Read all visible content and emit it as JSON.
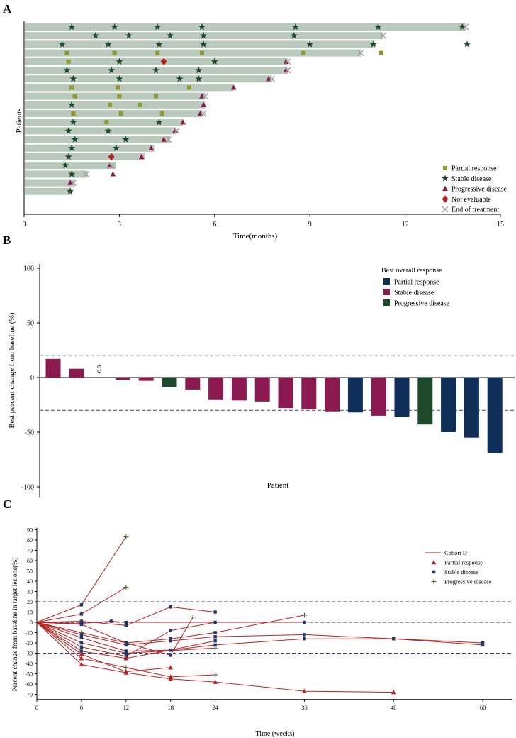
{
  "colors": {
    "swimmer_bar": "#b9c9bb",
    "partial_a": "#8c9a2c",
    "stable_a": "#1e4a2c",
    "progressive_a": "#8a1c4c",
    "not_evaluable_a": "#b32020",
    "end_a": "#9a9a9a",
    "partial_b": "#0f2e5a",
    "stable_b": "#8a1a50",
    "progressive_b": "#1e4a2c",
    "dashed_ref": "#2b4a78",
    "cohort_line": "#b32424",
    "partial_c": "#b32424",
    "stable_c": "#1f3a6a",
    "progressive_c": "#4a5a2a"
  },
  "chart_data": [
    {
      "panel": "A",
      "type": "swimmer",
      "xlabel": "Time(months)",
      "ylabel": "Patients",
      "xlim": [
        0,
        15
      ],
      "xticks": [
        "0",
        "3",
        "6",
        "9",
        "12",
        "15"
      ],
      "legend_position": "bottom-right",
      "legend": [
        "Partial response",
        "Stable disease",
        "Progressive disease",
        "Not evaluable",
        "End of treatment"
      ],
      "patients": [
        {
          "duration": 13.9,
          "partial": [],
          "stable": [
            1.5,
            2.85,
            4.2,
            5.6,
            8.55,
            11.15,
            13.8
          ],
          "progressive": [],
          "not_evaluable": [],
          "end": 13.9
        },
        {
          "duration": 11.3,
          "partial": [],
          "stable": [
            2.25,
            3.3,
            4.6,
            5.65,
            8.5
          ],
          "progressive": [],
          "not_evaluable": [],
          "end": 11.3
        },
        {
          "duration": 11.0,
          "partial": [],
          "stable": [
            1.2,
            2.65,
            4.25,
            5.65,
            9.0,
            11.0,
            13.95
          ],
          "progressive": [],
          "not_evaluable": [],
          "end": null
        },
        {
          "duration": 10.6,
          "partial": [
            1.35,
            2.85,
            4.2,
            5.6,
            8.8,
            11.25
          ],
          "stable": [],
          "progressive": [],
          "not_evaluable": [],
          "end": 10.6
        },
        {
          "duration": 8.3,
          "partial": [
            1.4
          ],
          "stable": [
            3.0,
            6.0
          ],
          "progressive": [
            8.25
          ],
          "not_evaluable": [
            4.4
          ],
          "end": 8.3
        },
        {
          "duration": 8.3,
          "partial": [],
          "stable": [
            1.35,
            2.75,
            4.15,
            5.5
          ],
          "progressive": [
            8.25
          ],
          "not_evaluable": [],
          "end": 8.3
        },
        {
          "duration": 7.8,
          "partial": [],
          "stable": [
            1.55,
            3.0,
            4.9,
            5.5
          ],
          "progressive": [
            7.7
          ],
          "not_evaluable": [],
          "end": 7.8
        },
        {
          "duration": 6.6,
          "partial": [
            1.5,
            2.95,
            5.2
          ],
          "stable": [],
          "progressive": [
            6.6
          ],
          "not_evaluable": [],
          "end": null
        },
        {
          "duration": 5.7,
          "partial": [
            1.6,
            3.0,
            4.15
          ],
          "stable": [],
          "progressive": [
            5.6
          ],
          "not_evaluable": [],
          "end": 5.7
        },
        {
          "duration": 5.7,
          "partial": [
            2.7,
            3.65
          ],
          "stable": [
            1.5
          ],
          "progressive": [
            5.65
          ],
          "not_evaluable": [],
          "end": null
        },
        {
          "duration": 5.6,
          "partial": [
            1.55,
            3.05,
            4.35
          ],
          "stable": [],
          "progressive": [
            5.55
          ],
          "not_evaluable": [],
          "end": 5.65
        },
        {
          "duration": 5.0,
          "partial": [
            2.6
          ],
          "stable": [
            1.55,
            4.25
          ],
          "progressive": [
            5.0
          ],
          "not_evaluable": [],
          "end": null
        },
        {
          "duration": 4.8,
          "partial": [],
          "stable": [
            1.4,
            2.65
          ],
          "progressive": [
            4.75
          ],
          "not_evaluable": [],
          "end": 4.8
        },
        {
          "duration": 4.6,
          "partial": [],
          "stable": [
            1.6,
            3.2
          ],
          "progressive": [
            4.4
          ],
          "not_evaluable": [],
          "end": 4.55
        },
        {
          "duration": 4.1,
          "partial": [],
          "stable": [
            1.5,
            2.9
          ],
          "progressive": [
            4.0
          ],
          "not_evaluable": [],
          "end": null
        },
        {
          "duration": 3.8,
          "partial": [],
          "stable": [
            1.4
          ],
          "progressive": [
            3.7
          ],
          "not_evaluable": [
            2.75
          ],
          "end": null
        },
        {
          "duration": 2.9,
          "partial": [],
          "stable": [
            1.3
          ],
          "progressive": [
            2.7
          ],
          "not_evaluable": [],
          "end": 2.75
        },
        {
          "duration": 2.0,
          "partial": [],
          "stable": [
            1.5
          ],
          "progressive": [
            2.8
          ],
          "not_evaluable": [],
          "end": 1.95
        },
        {
          "duration": 1.6,
          "partial": [],
          "stable": [],
          "progressive": [
            1.45
          ],
          "not_evaluable": [],
          "end": 1.55
        },
        {
          "duration": 1.5,
          "partial": [],
          "stable": [
            1.45
          ],
          "progressive": [],
          "not_evaluable": [],
          "end": null
        }
      ]
    },
    {
      "panel": "B",
      "type": "bar",
      "title": "",
      "xlabel": "Patient",
      "ylabel": "Best percent change from baseline (%)",
      "ylim": [
        -110,
        100
      ],
      "yticks": [
        "100",
        "50",
        "0",
        "-50",
        "-100"
      ],
      "reference_lines": [
        20,
        -30
      ],
      "zero_label": "0.0",
      "legend_title": "Best overall response",
      "legend_position": "top-right",
      "legend": [
        "Partial response",
        "Stable disease",
        "Progressive disease"
      ],
      "values": [
        17,
        8,
        0,
        -2,
        -3,
        -9,
        -11,
        -20,
        -21,
        -22,
        -28,
        -29,
        -31,
        -32,
        -35,
        -36,
        -43,
        -50,
        -55,
        -69
      ],
      "responses": [
        "stable",
        "stable",
        "stable",
        "stable",
        "stable",
        "progressive",
        "stable",
        "stable",
        "stable",
        "stable",
        "stable",
        "stable",
        "stable",
        "partial",
        "stable",
        "partial",
        "progressive",
        "partial",
        "partial",
        "partial"
      ]
    },
    {
      "panel": "C",
      "type": "line",
      "xlabel": "Time (weeks)",
      "ylabel": "Percent change from baseline in target lesions(%)",
      "xlim": [
        0,
        64
      ],
      "ylim": [
        -75,
        92
      ],
      "xticks": [
        "0",
        "6",
        "12",
        "18",
        "24",
        "36",
        "48",
        "60"
      ],
      "yticks": [
        "90",
        "80",
        "70",
        "60",
        "50",
        "40",
        "30",
        "20",
        "10",
        "0",
        "-10",
        "-20",
        "-30",
        "-40",
        "-50",
        "-60",
        "-70"
      ],
      "reference_lines": [
        20,
        0,
        -30
      ],
      "legend_position": "top-right",
      "legend": [
        "Cohort D",
        "Partial response",
        "Stable disease",
        "Progressive disease"
      ],
      "series": [
        {
          "x": [
            0,
            6,
            12
          ],
          "y": [
            0,
            17,
            83
          ],
          "markers": [
            "none",
            "stable",
            "progressive"
          ]
        },
        {
          "x": [
            0,
            6,
            12
          ],
          "y": [
            0,
            8,
            34
          ],
          "markers": [
            "none",
            "stable",
            "progressive"
          ]
        },
        {
          "x": [
            0,
            6,
            12,
            18,
            24
          ],
          "y": [
            0,
            1,
            -3,
            15,
            10
          ],
          "markers": [
            "none",
            "stable",
            "stable",
            "stable",
            "stable"
          ]
        },
        {
          "x": [
            0,
            6,
            10,
            12,
            36
          ],
          "y": [
            0,
            -1,
            1,
            0,
            0
          ],
          "markers": [
            "none",
            "stable",
            "stable",
            "stable",
            "stable"
          ]
        },
        {
          "x": [
            0,
            6,
            12,
            18,
            21
          ],
          "y": [
            0,
            -2,
            -20,
            -32,
            5
          ],
          "markers": [
            "none",
            "stable",
            "stable",
            "stable",
            "progressive"
          ]
        },
        {
          "x": [
            0,
            6,
            12,
            18,
            24,
            36
          ],
          "y": [
            0,
            -10,
            -20,
            -16,
            -10,
            7
          ],
          "markers": [
            "none",
            "progressive",
            "stable",
            "stable",
            "stable",
            "progressive"
          ]
        },
        {
          "x": [
            0,
            6,
            12,
            18,
            24,
            36,
            60
          ],
          "y": [
            0,
            -12,
            -22,
            -18,
            -14,
            -12,
            -20
          ],
          "markers": [
            "none",
            "stable",
            "stable",
            "stable",
            "stable",
            "stable",
            "stable"
          ]
        },
        {
          "x": [
            0,
            6,
            12,
            18,
            24,
            36,
            48,
            60
          ],
          "y": [
            0,
            -15,
            -28,
            -27,
            -22,
            -16,
            -16,
            -22
          ],
          "markers": [
            "none",
            "stable",
            "stable",
            "stable",
            "stable",
            "stable",
            "stable",
            "stable"
          ]
        },
        {
          "x": [
            0,
            6,
            12,
            24
          ],
          "y": [
            0,
            -20,
            -30,
            -25
          ],
          "markers": [
            "none",
            "stable",
            "stable",
            "progressive"
          ]
        },
        {
          "x": [
            0,
            6,
            12,
            18,
            24
          ],
          "y": [
            0,
            -24,
            -33,
            -8,
            0
          ],
          "markers": [
            "none",
            "stable",
            "stable",
            "stable",
            "stable"
          ]
        },
        {
          "x": [
            0,
            6,
            12,
            18,
            24
          ],
          "y": [
            0,
            -28,
            -35,
            -27,
            -18
          ],
          "markers": [
            "none",
            "stable",
            "partial",
            "stable",
            "stable"
          ]
        },
        {
          "x": [
            0,
            6,
            12,
            18
          ],
          "y": [
            0,
            -31,
            -48,
            -44
          ],
          "markers": [
            "none",
            "partial",
            "partial",
            "partial"
          ]
        },
        {
          "x": [
            0,
            6,
            12,
            18,
            24
          ],
          "y": [
            0,
            -35,
            -44,
            -53,
            -51
          ],
          "markers": [
            "none",
            "partial",
            "progressive",
            "partial",
            "progressive"
          ]
        },
        {
          "x": [
            0,
            6,
            12,
            18,
            24,
            36,
            48
          ],
          "y": [
            0,
            -41,
            -49,
            -55,
            -58,
            -67,
            -68
          ],
          "markers": [
            "none",
            "partial",
            "partial",
            "partial",
            "partial",
            "partial",
            "partial"
          ]
        }
      ]
    }
  ],
  "panels": {
    "a_label": "A",
    "b_label": "B",
    "c_label": "C"
  }
}
